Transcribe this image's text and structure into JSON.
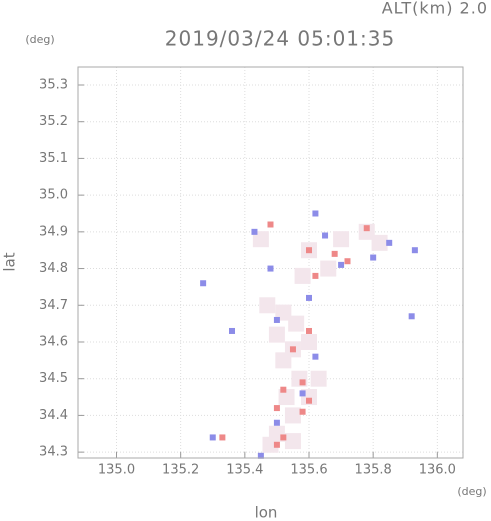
{
  "chart_data": {
    "type": "scatter",
    "title": "2019/03/24 05:01:35",
    "annotation": "ALT(km)  2.0",
    "x_label": "lon",
    "y_label": "lat",
    "x_unit": "(deg)",
    "y_unit": "(deg)",
    "xlim": [
      134.88,
      136.08
    ],
    "ylim": [
      34.284,
      35.349
    ],
    "xticks": [
      {
        "value": 135,
        "label": "135.0"
      },
      135.2,
      135.4,
      135.6,
      135.8,
      {
        "value": 136,
        "label": "136.0"
      }
    ],
    "yticks": [
      34.3,
      34.4,
      34.5,
      34.6,
      34.7,
      34.8,
      34.9,
      {
        "value": 35,
        "label": "35.0"
      },
      35.1,
      35.2,
      35.3
    ],
    "grid": true,
    "series": [
      {
        "color": "#f3e6ec",
        "x": [
          135.47,
          135.52,
          135.56,
          135.5,
          135.55,
          135.6,
          135.52,
          135.57,
          135.6,
          135.53,
          135.55,
          135.5,
          135.55,
          135.48,
          135.63,
          135.7,
          135.78,
          135.82,
          135.6,
          135.66,
          135.58,
          135.45
        ],
        "values": [
          34.7,
          34.68,
          34.65,
          34.62,
          34.58,
          34.6,
          34.55,
          34.5,
          34.45,
          34.45,
          34.4,
          34.35,
          34.33,
          34.32,
          34.5,
          34.88,
          34.9,
          34.87,
          34.85,
          34.8,
          34.78,
          34.88
        ]
      },
      {
        "color": "#ee8888",
        "x": [
          135.5,
          135.52,
          135.58,
          135.6,
          135.58,
          135.52,
          135.55,
          135.6,
          135.68,
          135.72,
          135.78,
          135.62,
          135.6,
          135.33,
          135.5,
          135.48
        ],
        "values": [
          34.32,
          34.34,
          34.41,
          34.44,
          34.49,
          34.47,
          34.58,
          34.85,
          34.84,
          34.82,
          34.91,
          34.78,
          34.63,
          34.34,
          34.42,
          34.92
        ]
      },
      {
        "color": "#8c8ce8",
        "x": [
          135.36,
          135.5,
          135.62,
          135.58,
          135.5,
          135.45,
          135.3,
          135.27,
          135.65,
          135.7,
          135.8,
          135.93,
          135.92,
          135.43,
          135.48,
          135.6,
          135.62,
          135.85
        ],
        "values": [
          34.63,
          34.66,
          34.56,
          34.46,
          34.38,
          34.29,
          34.34,
          34.76,
          34.89,
          34.81,
          34.83,
          34.85,
          34.67,
          34.9,
          34.8,
          34.72,
          34.95,
          34.87
        ]
      }
    ]
  }
}
